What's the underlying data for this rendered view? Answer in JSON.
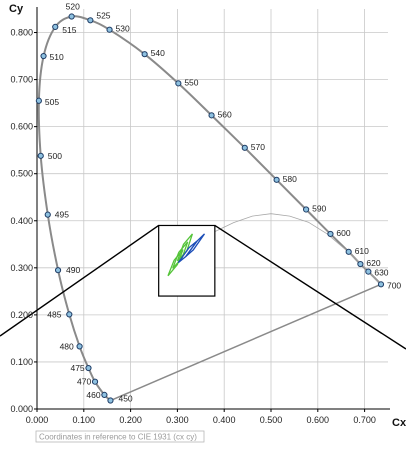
{
  "chart_data": {
    "type": "scatter",
    "title": "",
    "xlabel": "Cx",
    "ylabel": "Cy",
    "xlim": [
      0,
      0.75
    ],
    "ylim": [
      0,
      0.85
    ],
    "x_ticks": [
      "0.000",
      "0.100",
      "0.200",
      "0.300",
      "0.400",
      "0.500",
      "0.600",
      "0.700"
    ],
    "y_ticks": [
      "0.000",
      "0.100",
      "0.200",
      "0.300",
      "0.400",
      "0.500",
      "0.600",
      "0.700",
      "0.800"
    ],
    "grid": true,
    "footnote": "Coordinates in reference to CIE 1931 (cx cy)",
    "spectral_locus": [
      {
        "wavelength": "450",
        "x": 0.157,
        "y": 0.018
      },
      {
        "wavelength": "460",
        "x": 0.144,
        "y": 0.03
      },
      {
        "wavelength": "470",
        "x": 0.124,
        "y": 0.058
      },
      {
        "wavelength": "475",
        "x": 0.11,
        "y": 0.087
      },
      {
        "wavelength": "480",
        "x": 0.091,
        "y": 0.133
      },
      {
        "wavelength": "485",
        "x": 0.069,
        "y": 0.201
      },
      {
        "wavelength": "490",
        "x": 0.045,
        "y": 0.295
      },
      {
        "wavelength": "495",
        "x": 0.023,
        "y": 0.413
      },
      {
        "wavelength": "500",
        "x": 0.008,
        "y": 0.538
      },
      {
        "wavelength": "505",
        "x": 0.004,
        "y": 0.655
      },
      {
        "wavelength": "510",
        "x": 0.014,
        "y": 0.75
      },
      {
        "wavelength": "515",
        "x": 0.039,
        "y": 0.812
      },
      {
        "wavelength": "520",
        "x": 0.074,
        "y": 0.834
      },
      {
        "wavelength": "525",
        "x": 0.114,
        "y": 0.826
      },
      {
        "wavelength": "530",
        "x": 0.155,
        "y": 0.806
      },
      {
        "wavelength": "540",
        "x": 0.23,
        "y": 0.754
      },
      {
        "wavelength": "550",
        "x": 0.302,
        "y": 0.692
      },
      {
        "wavelength": "560",
        "x": 0.373,
        "y": 0.624
      },
      {
        "wavelength": "570",
        "x": 0.444,
        "y": 0.555
      },
      {
        "wavelength": "580",
        "x": 0.512,
        "y": 0.487
      },
      {
        "wavelength": "590",
        "x": 0.575,
        "y": 0.424
      },
      {
        "wavelength": "600",
        "x": 0.627,
        "y": 0.372
      },
      {
        "wavelength": "610",
        "x": 0.666,
        "y": 0.334
      },
      {
        "wavelength": "620",
        "x": 0.691,
        "y": 0.308
      },
      {
        "wavelength": "630",
        "x": 0.708,
        "y": 0.292
      },
      {
        "wavelength": "700",
        "x": 0.735,
        "y": 0.265
      }
    ],
    "inset_region": {
      "x": [
        0.26,
        0.38
      ],
      "y": [
        0.24,
        0.39
      ]
    },
    "planckian_locus": [
      {
        "x": 0.38,
        "y": 0.377
      },
      {
        "x": 0.42,
        "y": 0.396
      },
      {
        "x": 0.46,
        "y": 0.41
      },
      {
        "x": 0.5,
        "y": 0.415
      },
      {
        "x": 0.54,
        "y": 0.41
      },
      {
        "x": 0.58,
        "y": 0.397
      },
      {
        "x": 0.62,
        "y": 0.372
      },
      {
        "x": 0.66,
        "y": 0.338
      },
      {
        "x": 0.7,
        "y": 0.301
      },
      {
        "x": 0.73,
        "y": 0.269
      }
    ],
    "bins": [
      {
        "color": "#55c43a",
        "corners": [
          [
            0.28,
            0.283
          ],
          [
            0.293,
            0.316
          ],
          [
            0.312,
            0.339
          ],
          [
            0.3,
            0.307
          ]
        ]
      },
      {
        "color": "#55c43a",
        "corners": [
          [
            0.29,
            0.299
          ],
          [
            0.303,
            0.333
          ],
          [
            0.322,
            0.355
          ],
          [
            0.31,
            0.321
          ]
        ]
      },
      {
        "color": "#55c43a",
        "corners": [
          [
            0.3,
            0.315
          ],
          [
            0.313,
            0.35
          ],
          [
            0.332,
            0.372
          ],
          [
            0.32,
            0.336
          ]
        ]
      },
      {
        "color": "#1d4fb8",
        "corners": [
          [
            0.302,
            0.311
          ],
          [
            0.325,
            0.343
          ],
          [
            0.342,
            0.357
          ],
          [
            0.318,
            0.324
          ]
        ]
      },
      {
        "color": "#1d4fb8",
        "corners": [
          [
            0.318,
            0.324
          ],
          [
            0.342,
            0.357
          ],
          [
            0.358,
            0.372
          ],
          [
            0.334,
            0.338
          ]
        ]
      }
    ]
  }
}
